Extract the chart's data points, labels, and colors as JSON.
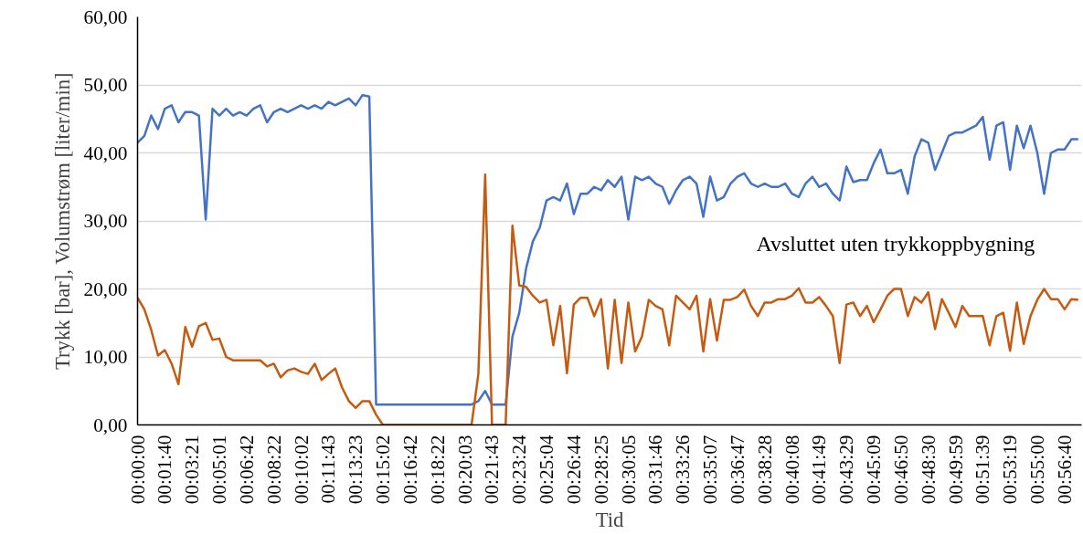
{
  "chart_data": {
    "type": "line",
    "xlabel": "Tid",
    "ylabel": "Trykk [bar], Volumstrøm [liter/min]",
    "annotations": [
      "Avsluttet uten trykkoppbygning"
    ],
    "categories": [
      "00:00:00",
      null,
      null,
      null,
      "00:01:40",
      null,
      null,
      null,
      "00:03:21",
      null,
      null,
      null,
      "00:05:01",
      null,
      null,
      null,
      "00:06:42",
      null,
      null,
      null,
      "00:08:22",
      null,
      null,
      null,
      "00:10:02",
      null,
      null,
      null,
      "00:11:43",
      null,
      null,
      null,
      "00:13:23",
      null,
      null,
      null,
      "00:15:02",
      null,
      null,
      null,
      "00:16:42",
      null,
      null,
      null,
      "00:18:22",
      null,
      null,
      null,
      "00:20:03",
      null,
      null,
      null,
      "00:21:43",
      null,
      null,
      null,
      "00:23:24",
      null,
      null,
      null,
      "00:25:04",
      null,
      null,
      null,
      "00:26:44",
      null,
      null,
      null,
      "00:28:25",
      null,
      null,
      null,
      "00:30:05",
      null,
      null,
      null,
      "00:31:46",
      null,
      null,
      null,
      "00:33:26",
      null,
      null,
      null,
      "00:35:07",
      null,
      null,
      null,
      "00:36:47",
      null,
      null,
      null,
      "00:38:28",
      null,
      null,
      null,
      "00:40:08",
      null,
      null,
      null,
      "00:41:49",
      null,
      null,
      null,
      "00:43:29",
      null,
      null,
      null,
      "00:45:09",
      null,
      null,
      null,
      "00:46:50",
      null,
      null,
      null,
      "00:48:30",
      null,
      null,
      null,
      "00:49:59",
      null,
      null,
      null,
      "00:51:39",
      null,
      null,
      null,
      "00:53:19",
      null,
      null,
      null,
      "00:55:00",
      null,
      null,
      null,
      "00:56:40",
      null,
      null
    ],
    "series": [
      {
        "color": "#4472c4",
        "values": [
          41.5,
          42.5,
          45.5,
          43.5,
          46.5,
          47,
          44.5,
          46,
          46,
          45.5,
          30.2,
          46.5,
          45.5,
          46.5,
          45.5,
          46,
          45.5,
          46.5,
          47,
          44.5,
          46,
          46.5,
          46,
          46.5,
          47,
          46.5,
          47,
          46.5,
          47.5,
          47,
          47.5,
          48,
          47,
          48.5,
          48.3,
          3,
          3,
          3,
          3,
          3,
          3,
          3,
          3,
          3,
          3,
          3,
          3,
          3,
          3,
          3,
          3.5,
          5,
          3,
          3,
          3,
          13,
          16.5,
          23,
          27,
          29,
          33,
          33.5,
          33,
          35.5,
          31,
          34,
          34,
          35,
          34.5,
          36,
          35,
          36.5,
          30.2,
          36.5,
          36,
          36.5,
          35.5,
          35,
          32.5,
          34.5,
          36,
          36.5,
          35.5,
          30.6,
          36.5,
          33,
          33.5,
          35.5,
          36.5,
          37,
          35.5,
          35,
          35.5,
          35,
          35,
          35.5,
          34,
          33.5,
          35.5,
          36.5,
          35,
          35.5,
          34,
          33,
          38,
          35.7,
          36,
          36,
          38.5,
          40.5,
          37,
          37,
          37.5,
          34,
          39.5,
          42,
          41.5,
          37.5,
          40,
          42.5,
          43,
          43,
          43.5,
          44,
          45.3,
          39,
          44,
          44.5,
          37.5,
          44,
          40.7,
          44,
          40,
          34,
          40,
          40.5,
          40.5,
          42,
          42
        ]
      },
      {
        "color": "#c55a11",
        "values": [
          18.7,
          17,
          14,
          10.2,
          11,
          9,
          6,
          14.4,
          11.5,
          14.5,
          15,
          12.5,
          12.7,
          10,
          9.5,
          9.5,
          9.5,
          9.5,
          9.5,
          8.6,
          9,
          7,
          8,
          8.3,
          7.8,
          7.5,
          9,
          6.6,
          7.5,
          8.3,
          5.5,
          3.5,
          2.5,
          3.5,
          3.5,
          1.5,
          0,
          0,
          0,
          0,
          0,
          0,
          0,
          0,
          0,
          0,
          0,
          0,
          0,
          0,
          7.5,
          36.8,
          0,
          0,
          0,
          29.3,
          20.5,
          20.3,
          19,
          18,
          18.4,
          11.7,
          17.5,
          7.6,
          17.7,
          18.7,
          18.7,
          16,
          18.5,
          8.3,
          18.4,
          9.1,
          18,
          10.8,
          13,
          18.4,
          17.5,
          17,
          11.7,
          19,
          18,
          17,
          19,
          10.8,
          18.5,
          12.4,
          18.4,
          18.4,
          18.8,
          19.9,
          17.5,
          16,
          18,
          18,
          18.5,
          18.5,
          19,
          20.1,
          18,
          18,
          18.8,
          17.5,
          16,
          9.1,
          17.7,
          18,
          16,
          17.5,
          15.1,
          17,
          19,
          20,
          20,
          16,
          18.8,
          18,
          19.5,
          14.1,
          18.5,
          16.5,
          14.4,
          17.5,
          16,
          16,
          16,
          11.7,
          16,
          16.5,
          10.9,
          18,
          11.9,
          16,
          18.4,
          20,
          18.5,
          18.5,
          17,
          18.5,
          18.4
        ]
      }
    ],
    "ylim": [
      0,
      60
    ],
    "yticks": [
      {
        "value": 0,
        "label": "0,00"
      },
      {
        "value": 10,
        "label": "10,00"
      },
      {
        "value": 20,
        "label": "20,00"
      },
      {
        "value": 30,
        "label": "30,00"
      },
      {
        "value": 40,
        "label": "40,00"
      },
      {
        "value": 50,
        "label": "50,00"
      },
      {
        "value": 60,
        "label": "60,00"
      }
    ],
    "grid": "y"
  }
}
